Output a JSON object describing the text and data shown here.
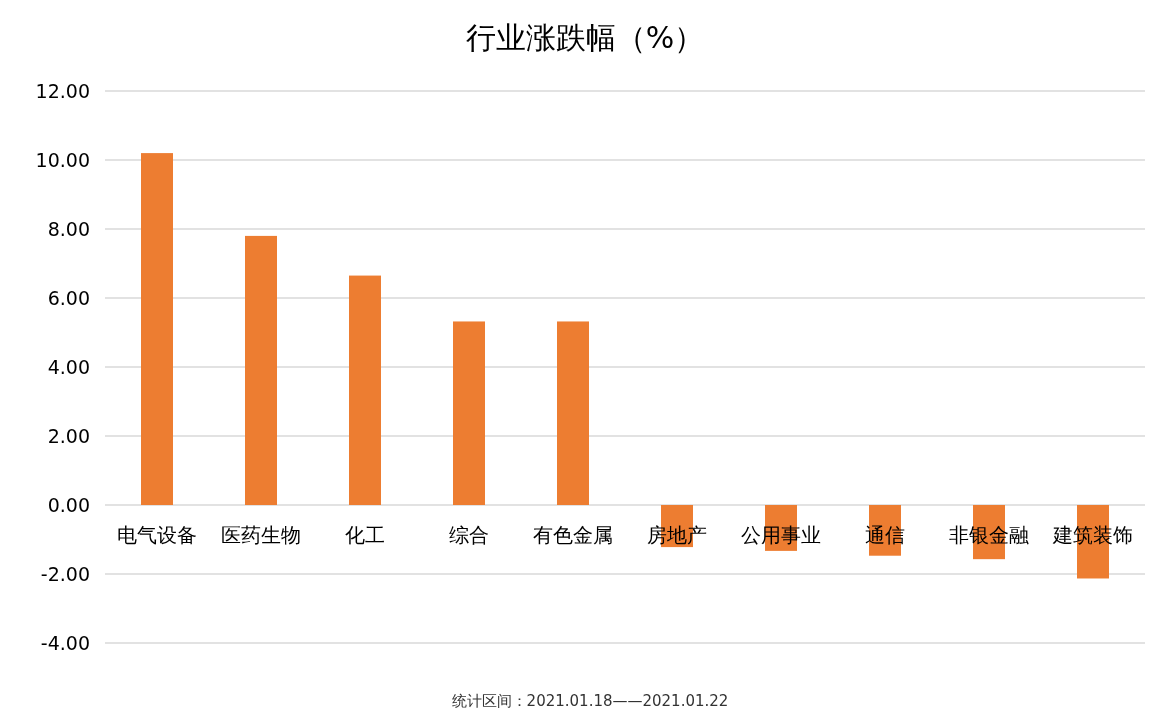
{
  "chart_data": {
    "type": "bar",
    "title": "行业涨跌幅（%）",
    "categories": [
      "电气设备",
      "医药生物",
      "化工",
      "综合",
      "有色金属",
      "房地产",
      "公用事业",
      "通信",
      "非银金融",
      "建筑装饰"
    ],
    "values": [
      10.2,
      7.8,
      6.65,
      5.32,
      5.32,
      -1.22,
      -1.33,
      -1.47,
      -1.57,
      -2.13
    ],
    "color": "#ed7d31",
    "ylim": [
      -4,
      12
    ],
    "yticks": [
      {
        "value": -4,
        "label": "-4.00"
      },
      {
        "value": -2,
        "label": "-2.00"
      },
      {
        "value": 0,
        "label": "0.00"
      },
      {
        "value": 2,
        "label": "2.00"
      },
      {
        "value": 4,
        "label": "4.00"
      },
      {
        "value": 6,
        "label": "6.00"
      },
      {
        "value": 8,
        "label": "8.00"
      },
      {
        "value": 10,
        "label": "10.00"
      },
      {
        "value": 12,
        "label": "12.00"
      }
    ],
    "grid": "y",
    "annotations": [
      "统计区间：2021.01.18——2021.01.22"
    ]
  }
}
